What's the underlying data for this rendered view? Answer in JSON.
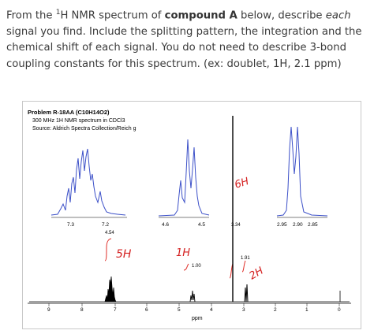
{
  "question": {
    "p1": "From the ",
    "sup": "1",
    "p2": "H NMR spectrum of ",
    "bold": "compound A",
    "p3": " below, describe ",
    "italic": "each",
    "p4": " signal you find. Include the splitting pattern, the integration and the chemical shift of each signal. You do not need to describe 3-bond coupling constants for this spectrum. (ex: doublet, 1H, 2.1 ppm)"
  },
  "figure": {
    "title": "Problem R-18AA (C10H14O2)",
    "subtitle": "300 MHz 1H NMR spectrum in CDCl3",
    "source": "Source: Aldrich Spectra Collection/Reich g",
    "axis_label": "ppm",
    "main_ticks": [
      "9",
      "8",
      "7",
      "6",
      "5",
      "4",
      "3",
      "2",
      "1",
      "0"
    ],
    "inset1_ticks": [
      "7.3",
      "7.2"
    ],
    "inset2_ticks": [
      "4.6",
      "4.5"
    ],
    "inset3_ticks": [
      "2.95",
      "2.90",
      "2.85"
    ],
    "integrals": [
      "4.54",
      "1.00",
      "1.91"
    ],
    "inset_marker": "3.34",
    "handwritten": [
      "5H",
      "1H",
      "6H",
      "2H"
    ],
    "colors": {
      "spectrum": "#000000",
      "inset": "#3c50c8",
      "integral": "#e0302a",
      "handwriting": "#d42020"
    }
  }
}
